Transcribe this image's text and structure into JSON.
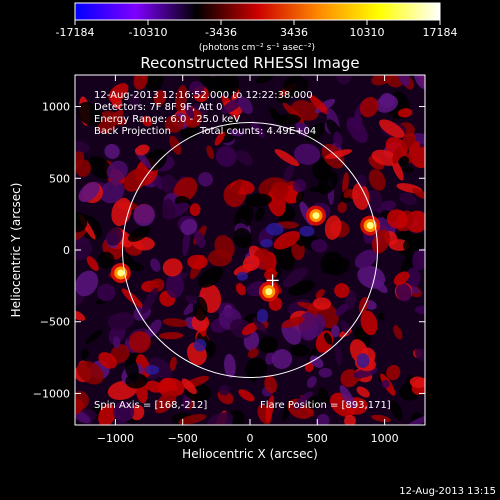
{
  "chart_data": {
    "type": "heatmap",
    "title": "Reconstructed RHESSI Image",
    "xlabel": "Heliocentric X (arcsec)",
    "ylabel": "Heliocentric Y (arcsec)",
    "xlim": [
      -1300,
      1300
    ],
    "ylim": [
      -1220,
      1220
    ],
    "xticks": [
      -1000,
      -500,
      0,
      500,
      1000
    ],
    "yticks": [
      -1000,
      -500,
      0,
      500,
      1000
    ],
    "colorbar": {
      "min": -17184,
      "max": 17184,
      "ticks": [
        -17184,
        -10310,
        -3436,
        3436,
        10310,
        17184
      ],
      "label": "(photons cm⁻² s⁻¹ asec⁻²)",
      "colors": [
        "#0000ff",
        "#7f00ff",
        "#000000",
        "#cc0000",
        "#ff8800",
        "#ffff00",
        "#ffffff"
      ]
    },
    "annotations": {
      "time_range": "12-Aug-2013 12:16:52.000 to 12:22:38.000",
      "detectors": "Detectors: 7F 8F 9F, Att 0",
      "energy": "Energy Range: 6.0 - 25.0 keV",
      "method": "Back Projection",
      "total_counts": "Total counts: 4.49E+04",
      "spin_axis": "Spin Axis = [168,-212]",
      "flare_position": "Flare Position = [893,171]"
    },
    "solar_limb": {
      "center": [
        0,
        0
      ],
      "radius": 947
    },
    "spin_axis_marker": [
      168,
      -212
    ],
    "bright_sources": [
      {
        "x": 893,
        "y": 171
      },
      {
        "x": -960,
        "y": -160
      },
      {
        "x": 490,
        "y": 240
      },
      {
        "x": 140,
        "y": -290
      }
    ]
  },
  "footer": {
    "timestamp": "12-Aug-2013 13:15"
  }
}
